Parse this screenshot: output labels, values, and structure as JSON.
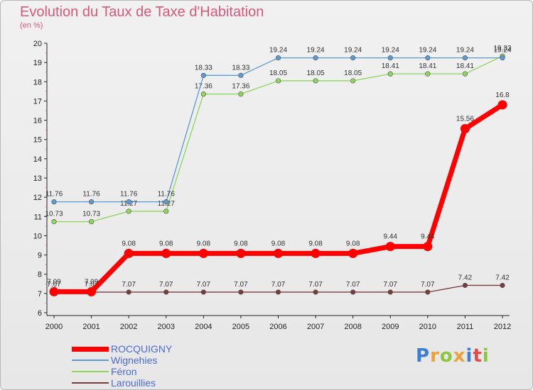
{
  "header": {
    "title": "Evolution du Taux de Taxe d'Habitation",
    "subtitle": "(en %)"
  },
  "logo": {
    "letters": [
      "P",
      "r",
      "o",
      "x",
      "i",
      "t",
      "i"
    ],
    "colors": [
      "#3a7fd4",
      "#e8a33a",
      "#8cc63f",
      "#e8a33a",
      "#3a7fd4",
      "#e04b4b",
      "#8cc63f"
    ]
  },
  "chart_data": {
    "type": "line",
    "x": [
      2000,
      2001,
      2002,
      2003,
      2004,
      2005,
      2006,
      2007,
      2008,
      2009,
      2010,
      2011,
      2012
    ],
    "ylim": [
      6,
      20
    ],
    "yticks": [
      6,
      7,
      8,
      9,
      10,
      11,
      12,
      13,
      14,
      15,
      16,
      17,
      18,
      19,
      20
    ],
    "grid": false,
    "legend_position": "bottom-left",
    "series": [
      {
        "name": "ROCQUIGNY",
        "color": "#ff0000",
        "values": [
          7.09,
          7.09,
          9.08,
          9.08,
          9.08,
          9.08,
          9.08,
          9.08,
          9.08,
          9.44,
          9.44,
          15.56,
          16.8
        ],
        "labels": [
          "7.09",
          "7.09",
          "9.08",
          "9.08",
          "9.08",
          "9.08",
          "9.08",
          "9.08",
          "9.08",
          "9.44",
          "9.44",
          "15.56",
          "16.8"
        ]
      },
      {
        "name": "Wignehies",
        "color": "#5b9bd5",
        "values": [
          11.76,
          11.76,
          11.76,
          11.76,
          18.33,
          18.33,
          19.24,
          19.24,
          19.24,
          19.24,
          19.24,
          19.24,
          19.24
        ],
        "labels": [
          "11.76",
          "11.76",
          "11.76",
          "11.76",
          "18.33",
          "18.33",
          "19.24",
          "19.24",
          "19.24",
          "19.24",
          "19.24",
          "19.24",
          "19.24"
        ]
      },
      {
        "name": "Féron",
        "color": "#8ed65a",
        "values": [
          10.73,
          10.73,
          11.27,
          11.27,
          17.36,
          17.36,
          18.05,
          18.05,
          18.05,
          18.41,
          18.41,
          18.41,
          19.33
        ],
        "labels": [
          "10.73",
          "10.73",
          "11.27",
          "11.27",
          "17.36",
          "17.36",
          "18.05",
          "18.05",
          "18.05",
          "18.41",
          "18.41",
          "18.41",
          "19.33"
        ]
      },
      {
        "name": "Larouillies",
        "color": "#7a3b3b",
        "values": [
          7.07,
          7.07,
          7.07,
          7.07,
          7.07,
          7.07,
          7.07,
          7.07,
          7.07,
          7.07,
          7.07,
          7.42,
          7.42
        ],
        "labels": [
          "7.07",
          "7.07",
          "7.07",
          "7.07",
          "7.07",
          "7.07",
          "7.07",
          "7.07",
          "7.07",
          "7.07",
          "7.07",
          "7.42",
          "7.42"
        ]
      }
    ]
  }
}
